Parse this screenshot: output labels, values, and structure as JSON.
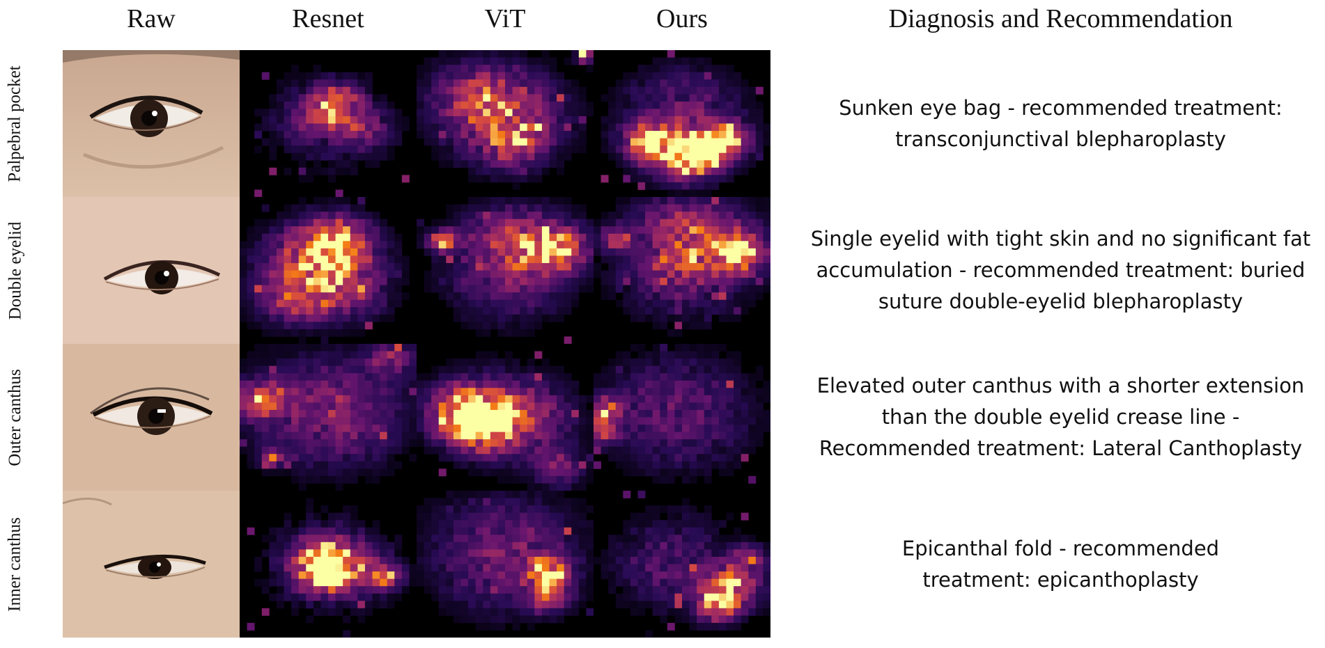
{
  "columns": {
    "raw": "Raw",
    "resnet": "Resnet",
    "vit": "ViT",
    "ours": "Ours",
    "diagnosis": "Diagnosis and Recommendation"
  },
  "rows": [
    {
      "label": "Palpebral pocket",
      "diagnosis": "Sunken eye bag - recommended treatment: transconjunctival blepharoplasty"
    },
    {
      "label": "Double eyelid",
      "diagnosis": "Single eyelid with tight skin and no significant fat accumulation - recommended treatment: buried suture double-eyelid blepharoplasty"
    },
    {
      "label": "Outer canthus",
      "diagnosis": "Elevated outer canthus with a shorter extension than the double eyelid crease line - Recommended treatment: Lateral Canthoplasty"
    },
    {
      "label": "Inner canthus",
      "diagnosis": "Epicanthal fold - recommended treatment: epicanthoplasty"
    }
  ],
  "colors": {
    "heat_low": "#0b0418",
    "heat_mid": "#7a1f80",
    "heat_high": "#e85a3c",
    "heat_peak": "#fff2a8",
    "skin": "#d9b79d",
    "iris": "#231612"
  }
}
